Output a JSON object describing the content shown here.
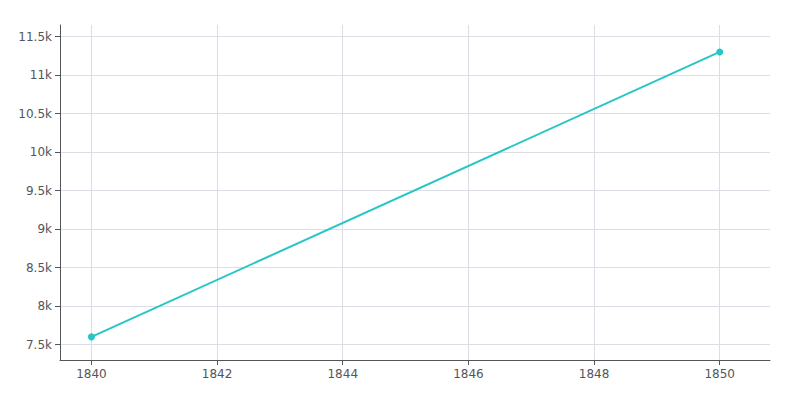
{
  "chart_data": {
    "type": "line",
    "x": [
      1840,
      1850
    ],
    "values": [
      7600,
      11300
    ],
    "color": "#26c6c6",
    "marker": "circle",
    "xlim": [
      1839.5,
      1850.8
    ],
    "xticks": [
      1840,
      1842,
      1844,
      1846,
      1848,
      1850
    ],
    "ylim": [
      7300,
      11650
    ],
    "yticks": [
      {
        "value": 7500,
        "label": "7.5k"
      },
      {
        "value": 8000,
        "label": "8k"
      },
      {
        "value": 8500,
        "label": "8.5k"
      },
      {
        "value": 9000,
        "label": "9k"
      },
      {
        "value": 9500,
        "label": "9.5k"
      },
      {
        "value": 10000,
        "label": "10k"
      },
      {
        "value": 10500,
        "label": "10.5k"
      },
      {
        "value": 11000,
        "label": "11k"
      },
      {
        "value": 11500,
        "label": "11.5k"
      }
    ],
    "grid": true
  }
}
